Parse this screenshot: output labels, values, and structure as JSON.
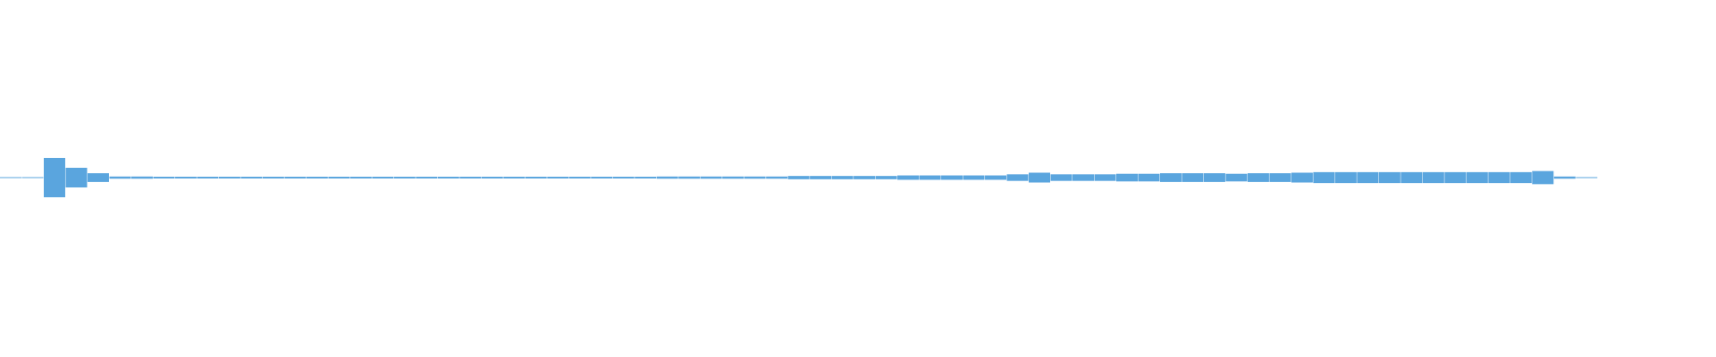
{
  "waveform": {
    "color": "#5aa5de",
    "amplitudes": [
      0.3,
      0.3,
      18,
      9,
      4,
      1,
      1,
      0.8,
      0.8,
      0.8,
      0.8,
      0.8,
      0.8,
      0.8,
      0.8,
      0.8,
      0.8,
      0.8,
      0.8,
      0.8,
      0.8,
      0.8,
      0.8,
      0.8,
      0.8,
      0.8,
      0.8,
      0.8,
      0.8,
      0.8,
      1,
      1,
      1,
      1,
      1,
      1,
      1.5,
      1.5,
      1.5,
      1.5,
      1.5,
      2,
      2,
      2,
      2,
      2,
      3,
      4.5,
      3,
      3,
      3,
      3.5,
      3.5,
      4,
      4,
      4,
      3.5,
      4,
      4,
      4.5,
      5,
      5,
      5,
      5,
      5,
      5,
      5,
      5,
      5,
      5,
      6,
      1,
      0.3
    ]
  }
}
